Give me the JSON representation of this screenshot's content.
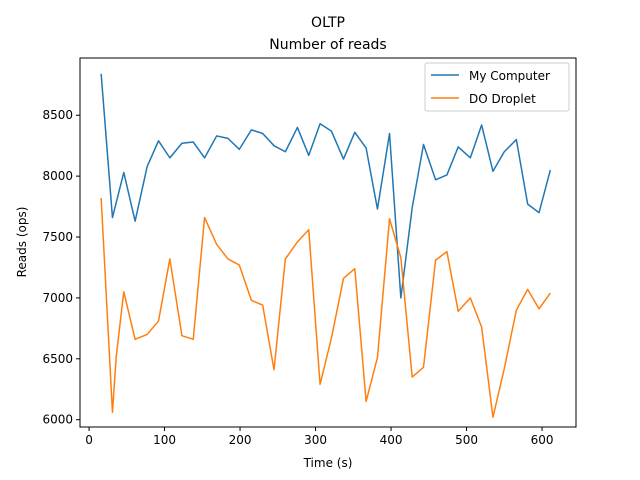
{
  "chart_data": {
    "type": "line",
    "title": "OLTP",
    "subtitle": "Number of reads",
    "xlabel": "Time (s)",
    "ylabel": "Reads (ops)",
    "xlim": [
      -12,
      645
    ],
    "ylim": [
      5940,
      8970
    ],
    "xticks": [
      0,
      100,
      200,
      300,
      400,
      500,
      600
    ],
    "yticks": [
      6000,
      6500,
      7000,
      7500,
      8000,
      8500
    ],
    "grid": false,
    "legend_position": "top-right",
    "series": [
      {
        "name": "My Computer",
        "color": "#1f77b4",
        "x": [
          16,
          31,
          46,
          61,
          77,
          92,
          107,
          123,
          138,
          153,
          169,
          184,
          199,
          215,
          230,
          245,
          260,
          276,
          291,
          306,
          321,
          337,
          352,
          367,
          382,
          398,
          413,
          428,
          443,
          459,
          474,
          489,
          505,
          520,
          535,
          550,
          566,
          581,
          596,
          611
        ],
        "y": [
          8840,
          7660,
          8030,
          7630,
          8080,
          8290,
          8150,
          8270,
          8280,
          8150,
          8330,
          8310,
          8220,
          8380,
          8350,
          8250,
          8200,
          8400,
          8170,
          8430,
          8370,
          8140,
          8360,
          8230,
          7730,
          8350,
          7000,
          7740,
          8260,
          7970,
          8010,
          8240,
          8150,
          8420,
          8040,
          8200,
          8300,
          7770,
          7700,
          8050
        ]
      },
      {
        "name": "DO Droplet",
        "color": "#ff7f0e",
        "x": [
          16,
          31,
          36,
          46,
          61,
          77,
          92,
          107,
          123,
          138,
          153,
          169,
          184,
          199,
          215,
          230,
          245,
          260,
          276,
          291,
          306,
          321,
          337,
          352,
          367,
          382,
          398,
          413,
          428,
          443,
          459,
          474,
          489,
          505,
          520,
          535,
          550,
          566,
          581,
          596,
          611
        ],
        "y": [
          7820,
          6060,
          6520,
          7050,
          6660,
          6700,
          6810,
          7320,
          6690,
          6660,
          7660,
          7440,
          7320,
          7270,
          6980,
          6940,
          6410,
          7320,
          7460,
          7560,
          6290,
          6670,
          7160,
          7240,
          6150,
          6510,
          7650,
          7330,
          6350,
          6430,
          7310,
          7380,
          6890,
          7000,
          6760,
          6020,
          6420,
          6900,
          7070,
          6910,
          7040
        ]
      }
    ]
  }
}
